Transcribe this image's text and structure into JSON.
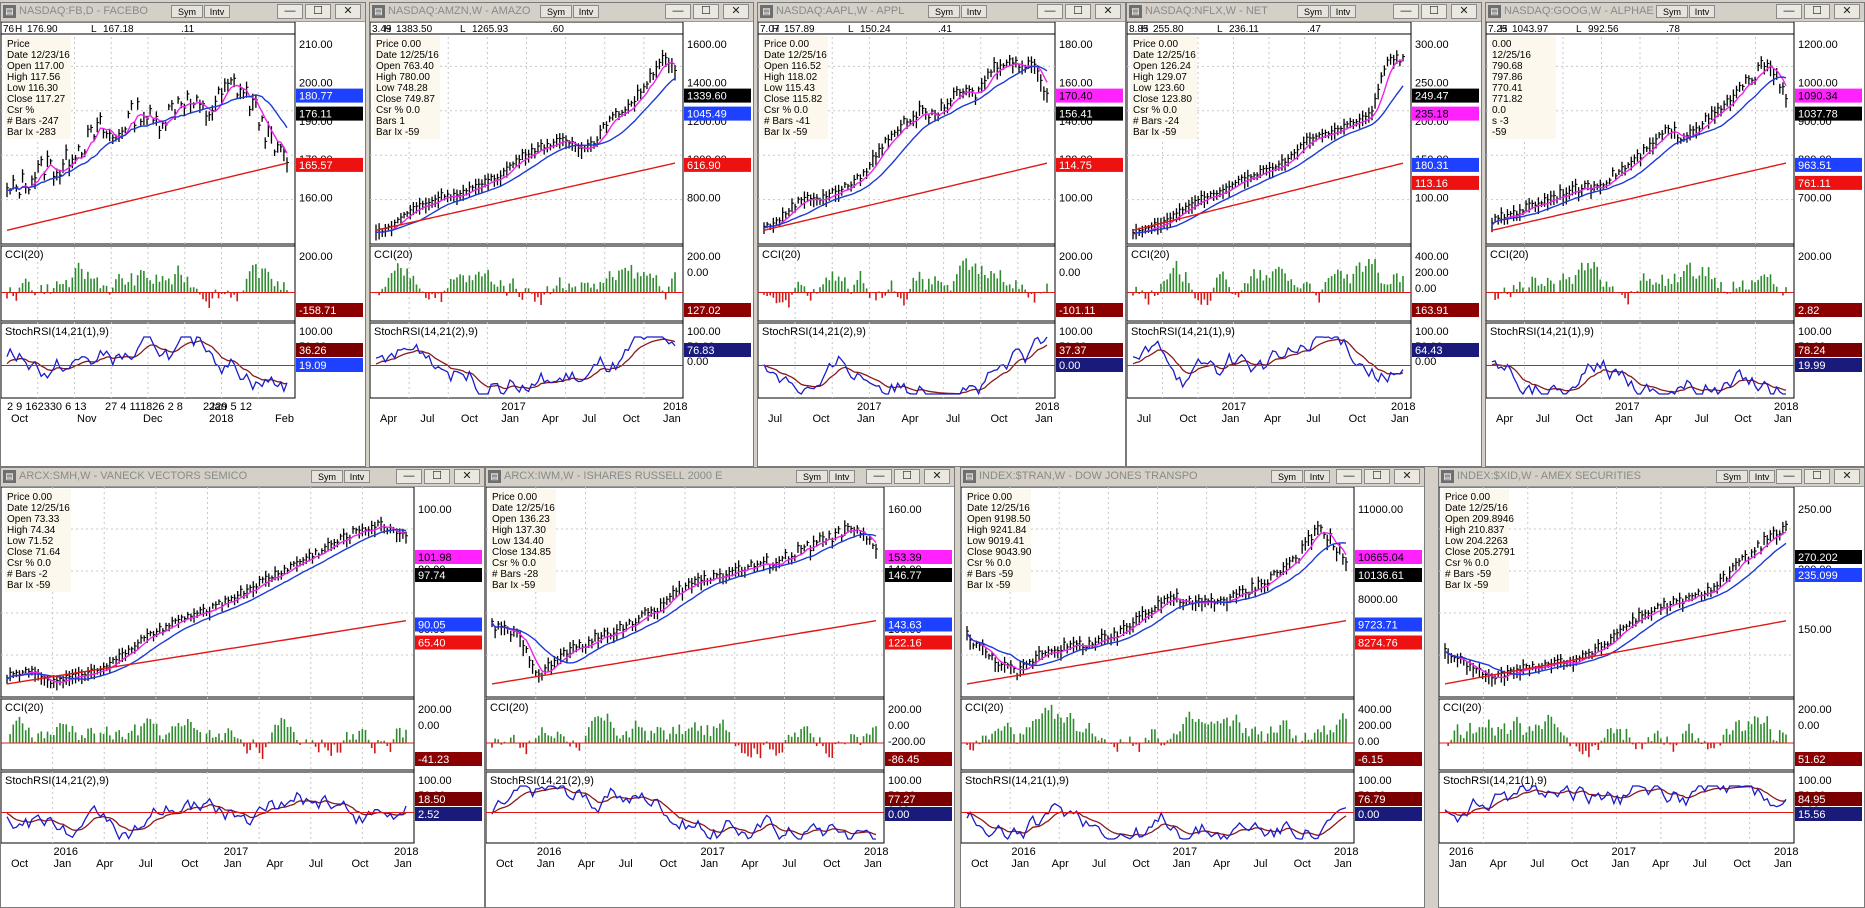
{
  "windows": [
    {
      "title": "NASDAQ:FB,D - FACEBO",
      "sym_label": "Sym",
      "intv_label": "Intv",
      "header": [
        "76",
        "H",
        "176.90",
        "L",
        "167.18",
        ".11"
      ],
      "info": [
        "Price",
        "Date   12/23/16",
        "Open   117.00",
        "High   117.56",
        "Low    116.30",
        "Close  117.27",
        "Csr %",
        "# Bars -247",
        "Bar Ix -283"
      ],
      "price_ticks": [
        "210.00",
        "200.00",
        "190.00",
        "170.00",
        "160.00"
      ],
      "price_tags": [
        {
          "text": "180.77",
          "bg": "#1e40ff",
          "fg": "#ffffff"
        },
        {
          "text": "176.11",
          "bg": "#000000",
          "fg": "#ffffff"
        },
        {
          "text": "165.57",
          "bg": "#ee1111",
          "fg": "#ffffff"
        }
      ],
      "cci_label": "CCI(20)",
      "cci_ticks": [
        "200.00"
      ],
      "cci_tag": {
        "text": "-158.71",
        "bg": "#8b0000",
        "fg": "#ffffff"
      },
      "stoch_label": "StochRSI(14,21(1),9)",
      "stoch_ticks": [
        "100.00",
        "50.00"
      ],
      "stoch_tags": [
        {
          "text": "36.26",
          "bg": "#7a0000",
          "fg": "#ffffff"
        },
        {
          "text": "19.09",
          "bg": "#1e40ff",
          "fg": "#ffffff"
        }
      ],
      "x_ticks": [
        "2",
        "9",
        "1623",
        "30",
        "6",
        "13",
        "Nov",
        "27",
        "4",
        "11",
        "Dec",
        "1826",
        "2",
        "8",
        "Jan",
        "2018",
        "2229",
        "5",
        "12",
        "Feb"
      ],
      "x_ticks_row": [
        "2  9 162330 6 13",
        "27 4 111826 2 8",
        "2229 5 12"
      ],
      "x_ticks_row2": [
        "Oct",
        "Nov",
        "Dec",
        "Jan 2018",
        "Feb"
      ]
    },
    {
      "title": "NASDAQ:AMZN,W - AMAZO",
      "sym_label": "Sym",
      "intv_label": "Intv",
      "header": [
        "3.49",
        "H",
        "1383.50",
        "L",
        "1265.93",
        ".60"
      ],
      "info": [
        "Price  0.00",
        "Date   12/25/16",
        "Open   763.40",
        "High   780.00",
        "Low    748.28",
        "Close  749.87",
        "Csr %  0.0",
        "Bars 1",
        "Bar Ix -59"
      ],
      "price_ticks": [
        "1600.00",
        "1400.00",
        "1200.00",
        "1000.00",
        "800.00"
      ],
      "price_tags": [
        {
          "text": "1339.60",
          "bg": "#000000",
          "fg": "#ffffff"
        },
        {
          "text": "1045.49",
          "bg": "#1e40ff",
          "fg": "#ffffff"
        },
        {
          "text": "616.90",
          "bg": "#ee1111",
          "fg": "#ffffff"
        }
      ],
      "cci_label": "CCI(20)",
      "cci_ticks": [
        "200.00",
        "0.00"
      ],
      "cci_tag": {
        "text": "127.02",
        "bg": "#8b0000",
        "fg": "#ffffff"
      },
      "stoch_label": "StochRSI(14,21(2),9)",
      "stoch_ticks": [
        "100.00",
        "50.00",
        "0.00"
      ],
      "stoch_tags": [
        {
          "text": "76.83",
          "bg": "#1a1a7a",
          "fg": "#ffffff"
        }
      ],
      "x_ticks_row2": [
        "Apr",
        "Jul",
        "Oct",
        "2017 Jan",
        "Apr",
        "Jul",
        "Oct",
        "2018 Jan"
      ]
    },
    {
      "title": "NASDAQ:AAPL,W - APPL",
      "sym_label": "Sym",
      "intv_label": "Intv",
      "header": [
        "7.07",
        "H",
        "157.89",
        "L",
        "150.24",
        ".41"
      ],
      "info": [
        "Price  0.00",
        "Date   12/25/16",
        "Open   116.52",
        "High   118.02",
        "Low    115.43",
        "Close  115.82",
        "Csr %  0.0",
        "# Bars -41",
        "Bar Ix -59"
      ],
      "price_ticks": [
        "180.00",
        "160.00",
        "140.00",
        "120.00",
        "100.00"
      ],
      "price_tags": [
        {
          "text": "170.40",
          "bg": "#ff22ff",
          "fg": "#000000"
        },
        {
          "text": "156.41",
          "bg": "#000000",
          "fg": "#ffffff"
        },
        {
          "text": "114.75",
          "bg": "#ee1111",
          "fg": "#ffffff"
        }
      ],
      "cci_label": "CCI(20)",
      "cci_ticks": [
        "200.00",
        "0.00"
      ],
      "cci_tag": {
        "text": "-101.11",
        "bg": "#8b0000",
        "fg": "#ffffff"
      },
      "stoch_label": "StochRSI(14,21(2),9)",
      "stoch_ticks": [
        "100.00",
        "50.00"
      ],
      "stoch_tags": [
        {
          "text": "37.37",
          "bg": "#7a0000",
          "fg": "#ffffff"
        },
        {
          "text": "0.00",
          "bg": "#1a1a7a",
          "fg": "#ffffff"
        }
      ],
      "x_ticks_row2": [
        "Jul",
        "Oct",
        "2017 Jan",
        "Apr",
        "Jul",
        "Oct",
        "2018 Jan"
      ]
    },
    {
      "title": "NASDAQ:NFLX,W - NET",
      "sym_label": "Sym",
      "intv_label": "Intv",
      "header": [
        "8.85",
        "H",
        "255.80",
        "L",
        "236.11",
        ".47"
      ],
      "info": [
        "Price  0.00",
        "Date   12/25/16",
        "Open   126.24",
        "High   129.07",
        "Low    123.60",
        "Close  123.80",
        "Csr %  0.0",
        "# Bars -24",
        "Bar Ix -59"
      ],
      "price_ticks": [
        "300.00",
        "250.00",
        "200.00",
        "150.00",
        "100.00"
      ],
      "price_tags": [
        {
          "text": "249.47",
          "bg": "#000000",
          "fg": "#ffffff"
        },
        {
          "text": "235.18",
          "bg": "#ff22ff",
          "fg": "#000000"
        },
        {
          "text": "180.31",
          "bg": "#1e40ff",
          "fg": "#ffffff"
        },
        {
          "text": "113.16",
          "bg": "#ee1111",
          "fg": "#ffffff"
        }
      ],
      "cci_label": "CCI(20)",
      "cci_ticks": [
        "400.00",
        "200.00",
        "0.00"
      ],
      "cci_tag": {
        "text": "163.91",
        "bg": "#8b0000",
        "fg": "#ffffff"
      },
      "stoch_label": "StochRSI(14,21(1),9)",
      "stoch_ticks": [
        "100.00",
        "50.00",
        "0.00"
      ],
      "stoch_tags": [
        {
          "text": "64.43",
          "bg": "#1a1a7a",
          "fg": "#ffffff"
        }
      ],
      "x_ticks_row2": [
        "Jul",
        "Oct",
        "2017 Jan",
        "Apr",
        "Jul",
        "Oct",
        "2018 Jan"
      ]
    },
    {
      "title": "NASDAQ:GOOG,W - ALPHAE",
      "sym_label": "Sym",
      "intv_label": "Intv",
      "header": [
        "7.25",
        "H",
        "1043.97",
        "L",
        "992.56",
        ".78"
      ],
      "info": [
        "0.00",
        "12/25/16",
        "790.68",
        "797.86",
        "770.41",
        "771.82",
        "0.0",
        "s -3",
        "-59"
      ],
      "price_ticks": [
        "1200.00",
        "1000.00",
        "900.00",
        "800.00",
        "700.00"
      ],
      "price_tags": [
        {
          "text": "1090.34",
          "bg": "#ff22ff",
          "fg": "#000000"
        },
        {
          "text": "1037.78",
          "bg": "#000000",
          "fg": "#ffffff"
        },
        {
          "text": "963.51",
          "bg": "#1e40ff",
          "fg": "#ffffff"
        },
        {
          "text": "761.11",
          "bg": "#ee1111",
          "fg": "#ffffff"
        }
      ],
      "cci_label": "CCI(20)",
      "cci_ticks": [
        "200.00"
      ],
      "cci_tag": {
        "text": "2.82",
        "bg": "#8b0000",
        "fg": "#ffffff"
      },
      "stoch_label": "StochRSI(14,21(1),9)",
      "stoch_ticks": [
        "100.00",
        "50.00"
      ],
      "stoch_tags": [
        {
          "text": "78.24",
          "bg": "#7a0000",
          "fg": "#ffffff"
        },
        {
          "text": "19.99",
          "bg": "#1a1a7a",
          "fg": "#ffffff"
        }
      ],
      "x_ticks_row2": [
        "Apr",
        "Jul",
        "Oct",
        "2017 Jan",
        "Apr",
        "Jul",
        "Oct",
        "2018 Jan"
      ]
    },
    {
      "title": "ARCX:SMH,W - VANECK VECTORS SEMICO",
      "sym_label": "Sym",
      "intv_label": "Intv",
      "header": [],
      "info": [
        "Price  0.00",
        "Date   12/25/16",
        "Open   73.33",
        "High   74.34",
        "Low    71.52",
        "Close  71.64",
        "Csr %  0.0",
        "# Bars -2",
        "Bar Ix -59"
      ],
      "price_ticks": [
        "100.00",
        "80.00",
        "60.00"
      ],
      "price_tags": [
        {
          "text": "101.98",
          "bg": "#ff22ff",
          "fg": "#000000"
        },
        {
          "text": "97.74",
          "bg": "#000000",
          "fg": "#ffffff"
        },
        {
          "text": "90.05",
          "bg": "#1e40ff",
          "fg": "#ffffff"
        },
        {
          "text": "65.40",
          "bg": "#ee1111",
          "fg": "#ffffff"
        }
      ],
      "cci_label": "CCI(20)",
      "cci_ticks": [
        "200.00",
        "0.00"
      ],
      "cci_tag": {
        "text": "-41.23",
        "bg": "#8b0000",
        "fg": "#ffffff"
      },
      "stoch_label": "StochRSI(14,21(2),9)",
      "stoch_ticks": [
        "100.00",
        "50.00"
      ],
      "stoch_tags": [
        {
          "text": "18.50",
          "bg": "#7a0000",
          "fg": "#ffffff"
        },
        {
          "text": "2.52",
          "bg": "#1a1a7a",
          "fg": "#ffffff"
        }
      ],
      "x_ticks_row2": [
        "Oct",
        "2016 Jan",
        "Apr",
        "Jul",
        "Oct",
        "2017 Jan",
        "Apr",
        "Jul",
        "Oct",
        "2018 Jan"
      ]
    },
    {
      "title": "ARCX:IWM,W - ISHARES RUSSELL 2000 E",
      "sym_label": "Sym",
      "intv_label": "Intv",
      "header": [],
      "info": [
        "Price  0.00",
        "Date   12/25/16",
        "Open   136.23",
        "High   137.30",
        "Low    134.40",
        "Close  134.85",
        "Csr %  0.0",
        "# Bars -28",
        "Bar Ix -59"
      ],
      "price_ticks": [
        "160.00",
        "140.00",
        "100.00"
      ],
      "price_tags": [
        {
          "text": "153.39",
          "bg": "#ff22ff",
          "fg": "#000000"
        },
        {
          "text": "146.77",
          "bg": "#000000",
          "fg": "#ffffff"
        },
        {
          "text": "143.63",
          "bg": "#1e40ff",
          "fg": "#ffffff"
        },
        {
          "text": "122.16",
          "bg": "#ee1111",
          "fg": "#ffffff"
        }
      ],
      "cci_label": "CCI(20)",
      "cci_ticks": [
        "200.00",
        "0.00",
        "-200.00"
      ],
      "cci_tag": {
        "text": "-86.45",
        "bg": "#8b0000",
        "fg": "#ffffff"
      },
      "stoch_label": "StochRSI(14,21(2),9)",
      "stoch_ticks": [
        "100.00",
        "50.00",
        "0.00"
      ],
      "stoch_tags": [
        {
          "text": "77.27",
          "bg": "#7a0000",
          "fg": "#ffffff"
        },
        {
          "text": "0.00",
          "bg": "#1a1a7a",
          "fg": "#ffffff"
        }
      ],
      "x_ticks_row2": [
        "Oct",
        "2016 Jan",
        "Apr",
        "Jul",
        "Oct",
        "2017 Jan",
        "Apr",
        "Jul",
        "Oct",
        "2018 Jan"
      ]
    },
    {
      "title": "INDEX:$TRAN,W - DOW JONES TRANSPO",
      "sym_label": "Sym",
      "intv_label": "Intv",
      "header": [],
      "info": [
        "Price  0.00",
        "Date   12/25/16",
        "Open   9198.50",
        "High   9241.84",
        "Low    9019.41",
        "Close  9043.90",
        "Csr %  0.0",
        "# Bars -59",
        "Bar Ix -59"
      ],
      "price_ticks": [
        "11000.00",
        "9000.00",
        "8000.00",
        "7000.00"
      ],
      "price_tags": [
        {
          "text": "10665.04",
          "bg": "#ff22ff",
          "fg": "#000000"
        },
        {
          "text": "10136.61",
          "bg": "#000000",
          "fg": "#ffffff"
        },
        {
          "text": "9723.71",
          "bg": "#1e40ff",
          "fg": "#ffffff"
        },
        {
          "text": "8274.76",
          "bg": "#ee1111",
          "fg": "#ffffff"
        }
      ],
      "cci_label": "CCI(20)",
      "cci_ticks": [
        "400.00",
        "200.00",
        "0.00",
        "-200.00"
      ],
      "cci_tag": {
        "text": "-6.15",
        "bg": "#8b0000",
        "fg": "#ffffff"
      },
      "stoch_label": "StochRSI(14,21(1),9)",
      "stoch_ticks": [
        "100.00",
        "50.00"
      ],
      "stoch_tags": [
        {
          "text": "76.79",
          "bg": "#7a0000",
          "fg": "#ffffff"
        },
        {
          "text": "0.00",
          "bg": "#1a1a7a",
          "fg": "#ffffff"
        }
      ],
      "x_ticks_row2": [
        "Oct",
        "2016 Jan",
        "Apr",
        "Jul",
        "Oct",
        "2017 Jan",
        "Apr",
        "Jul",
        "Oct",
        "2018 Jan"
      ]
    },
    {
      "title": "INDEX:$XID,W - AMEX SECURITIES",
      "sym_label": "Sym",
      "intv_label": "Intv",
      "header": [],
      "info": [
        "Price  0.00",
        "Date   12/25/16",
        "Open   209.8946",
        "High   210.837",
        "Low    204.2263",
        "Close  205.2791",
        "Csr %  0.0",
        "# Bars -59",
        "Bar Ix -59"
      ],
      "price_ticks": [
        "250.00",
        "200.00",
        "150.00"
      ],
      "price_tags": [
        {
          "text": "270.202",
          "bg": "#000000",
          "fg": "#ffffff"
        },
        {
          "text": "235.099",
          "bg": "#1e40ff",
          "fg": "#ffffff"
        }
      ],
      "cci_label": "CCI(20)",
      "cci_ticks": [
        "200.00",
        "0.00"
      ],
      "cci_tag": {
        "text": "51.62",
        "bg": "#8b0000",
        "fg": "#ffffff"
      },
      "stoch_label": "StochRSI(14,21(1),9)",
      "stoch_ticks": [
        "100.00",
        "50.00",
        "0.00"
      ],
      "stoch_tags": [
        {
          "text": "84.95",
          "bg": "#7a0000",
          "fg": "#ffffff"
        },
        {
          "text": "15.56",
          "bg": "#1a1a7a",
          "fg": "#ffffff"
        }
      ],
      "x_ticks_row2": [
        "2016 Jan",
        "Apr",
        "Jul",
        "Oct",
        "2017 Jan",
        "Apr",
        "Jul",
        "Oct",
        "2018 Jan"
      ]
    }
  ],
  "colors": {
    "bars": "#000000",
    "ma_fast": "#ee22ee",
    "ma_mid": "#1e3ad6",
    "ma_slow": "#e01818",
    "cci_pos": "#2e8b2e",
    "cci_neg": "#d01818",
    "stoch_k": "#1c1cc8",
    "stoch_d": "#8b1a1a",
    "grid": "#c8c8c8"
  },
  "chart_data": [
    {
      "type": "line",
      "title": "NASDAQ:FB,D - FACEBO",
      "series": [
        {
          "name": "FB",
          "values": [
            168,
            170,
            172,
            175,
            173,
            178,
            180,
            183,
            180,
            185,
            187,
            184,
            186,
            190,
            188,
            186,
            190,
            193,
            190,
            185,
            178,
            176
          ]
        }
      ]
    },
    {
      "type": "line",
      "title": "NASDAQ:AMZN,W - AMAZO",
      "series": [
        {
          "name": "AMZN",
          "values": [
            580,
            600,
            660,
            700,
            720,
            760,
            750,
            780,
            820,
            840,
            900,
            950,
            980,
            1000,
            1010,
            980,
            1000,
            1100,
            1150,
            1200,
            1300,
            1400,
            1339.6
          ]
        }
      ]
    },
    {
      "type": "line",
      "title": "NASDAQ:AAPL,W - APPL",
      "series": [
        {
          "name": "AAPL",
          "values": [
            95,
            98,
            105,
            110,
            108,
            112,
            115,
            120,
            130,
            140,
            145,
            150,
            148,
            155,
            160,
            158,
            170,
            175,
            172,
            175,
            156.41
          ]
        }
      ]
    },
    {
      "type": "line",
      "title": "NASDAQ:NFLX,W - NET",
      "series": [
        {
          "name": "NFLX",
          "values": [
            90,
            95,
            100,
            110,
            120,
            125,
            130,
            140,
            145,
            150,
            160,
            175,
            180,
            185,
            190,
            200,
            250,
            249.47
          ]
        }
      ]
    },
    {
      "type": "line",
      "title": "NASDAQ:GOOG,W - ALPHAE",
      "series": [
        {
          "name": "GOOG",
          "values": [
            700,
            720,
            740,
            760,
            780,
            790,
            800,
            830,
            860,
            900,
            950,
            940,
            970,
            1000,
            1050,
            1100,
            1150,
            1037.78
          ]
        }
      ]
    },
    {
      "type": "line",
      "title": "ARCX:SMH,W - VANECK VECTORS SEMICO",
      "series": [
        {
          "name": "SMH",
          "values": [
            50,
            52,
            48,
            50,
            52,
            56,
            62,
            66,
            70,
            72,
            76,
            80,
            84,
            88,
            92,
            96,
            100,
            101,
            97.74
          ]
        }
      ]
    },
    {
      "type": "line",
      "title": "ARCX:IWM,W - ISHARES RUSSELL 2000 E",
      "series": [
        {
          "name": "IWM",
          "values": [
            118,
            115,
            100,
            108,
            112,
            116,
            120,
            125,
            132,
            136,
            138,
            140,
            142,
            146,
            150,
            153,
            146.77
          ]
        }
      ]
    },
    {
      "type": "line",
      "title": "INDEX:$TRAN,W - DOW JONES TRANSPO",
      "series": [
        {
          "name": "TRAN",
          "values": [
            8200,
            7600,
            7200,
            7800,
            7900,
            8000,
            8200,
            8800,
            9200,
            9000,
            9100,
            9300,
            9700,
            10200,
            11000,
            10136.61
          ]
        }
      ]
    },
    {
      "type": "line",
      "title": "INDEX:$XID,W - AMEX SECURITIES",
      "series": [
        {
          "name": "XID",
          "values": [
            180,
            170,
            160,
            165,
            170,
            172,
            175,
            185,
            200,
            210,
            215,
            220,
            230,
            245,
            260,
            270.202
          ]
        }
      ]
    }
  ]
}
